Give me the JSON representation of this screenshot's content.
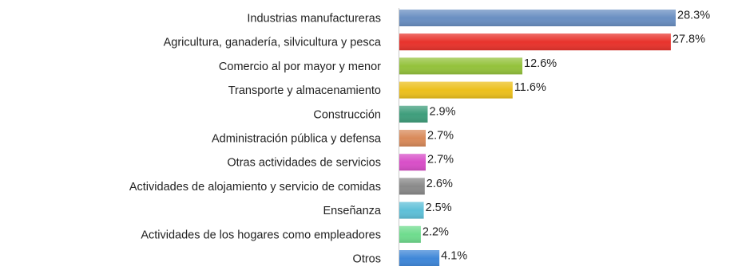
{
  "chart_data": {
    "type": "bar",
    "orientation": "horizontal",
    "title": "",
    "xlabel": "",
    "ylabel": "",
    "xlim": [
      0,
      28.3
    ],
    "grid": false,
    "legend": "none",
    "value_suffix": "%",
    "categories": [
      "Industrias manufactureras",
      "Agricultura, ganadería, silvicultura y pesca",
      "Comercio al por mayor y menor",
      "Transporte y almacenamiento",
      "Construcción",
      "Administración pública y defensa",
      "Otras actividades de servicios",
      "Actividades de alojamiento y servicio de comidas",
      "Enseñanza",
      "Actividades de los hogares como empleadores",
      "Otros"
    ],
    "values": [
      28.3,
      27.8,
      12.6,
      11.6,
      2.9,
      2.7,
      2.7,
      2.6,
      2.5,
      2.2,
      4.1
    ],
    "value_labels": [
      "28.3%",
      "27.8%",
      "12.6%",
      "11.6%",
      "2.9%",
      "2.7%",
      "2.7%",
      "2.6%",
      "2.5%",
      "2.2%",
      "4.1%"
    ],
    "colors": [
      "#6a8fc2",
      "#e8332c",
      "#94c23c",
      "#ecc01c",
      "#3f9e7c",
      "#d98a5a",
      "#d84ec8",
      "#8a8a8a",
      "#5ec0d8",
      "#6fdc8e",
      "#3f87d8"
    ]
  }
}
